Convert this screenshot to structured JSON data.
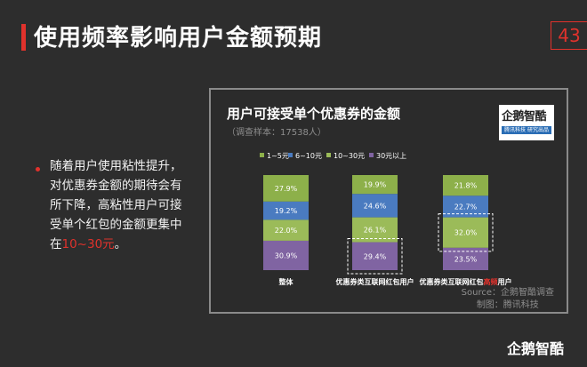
{
  "slide": {
    "title": "使用频率影响用户金额预期",
    "page_number": "43",
    "bullet_prefix": "随着用户使用粘性提升，对优惠券金额的期待会有所下降，高粘性用户可接受单个红包的金额更集中在",
    "bullet_highlight": "10~30元",
    "bullet_suffix": "。",
    "brand": "企鹅智酷"
  },
  "logo": {
    "name": "企鹅智酷",
    "tagline": "腾讯科技  研究出品"
  },
  "source": {
    "line1": "Source：企鹅智酷调查",
    "line2": "制图：腾讯科技"
  },
  "colors": {
    "accent": "#e0322c",
    "series": [
      "#8db04a",
      "#4a7bc0",
      "#9bbb59",
      "#8064a2"
    ]
  },
  "chart_data": {
    "type": "bar",
    "stacked": true,
    "title": "用户可接受单个优惠券的金额",
    "subtitle": "（调查样本：17538人）",
    "legend_position": "top",
    "categories": [
      "整体",
      "优惠券类互联网红包用户",
      "优惠券类互联网红包"
    ],
    "category_suffix_highlight": [
      "",
      "",
      "高频"
    ],
    "category_suffix": [
      "",
      "",
      "用户"
    ],
    "series": [
      {
        "name": "1~5元",
        "values": [
          27.9,
          19.9,
          21.8
        ],
        "labels": [
          "27.9%",
          "19.9%",
          "21.8%"
        ]
      },
      {
        "name": "6~10元",
        "values": [
          19.2,
          24.6,
          22.7
        ],
        "labels": [
          "19.2%",
          "24.6%",
          "22.7%"
        ]
      },
      {
        "name": "10~30元",
        "values": [
          22.0,
          26.1,
          32.0
        ],
        "labels": [
          "22.0%",
          "26.1%",
          "32.0%"
        ]
      },
      {
        "name": "30元以上",
        "values": [
          30.9,
          29.4,
          23.5
        ],
        "labels": [
          "30.9%",
          "29.4%",
          "23.5%"
        ]
      }
    ],
    "highlighted": [
      {
        "category_index": 1,
        "series_index": 3
      },
      {
        "category_index": 2,
        "series_index": 2
      }
    ]
  }
}
